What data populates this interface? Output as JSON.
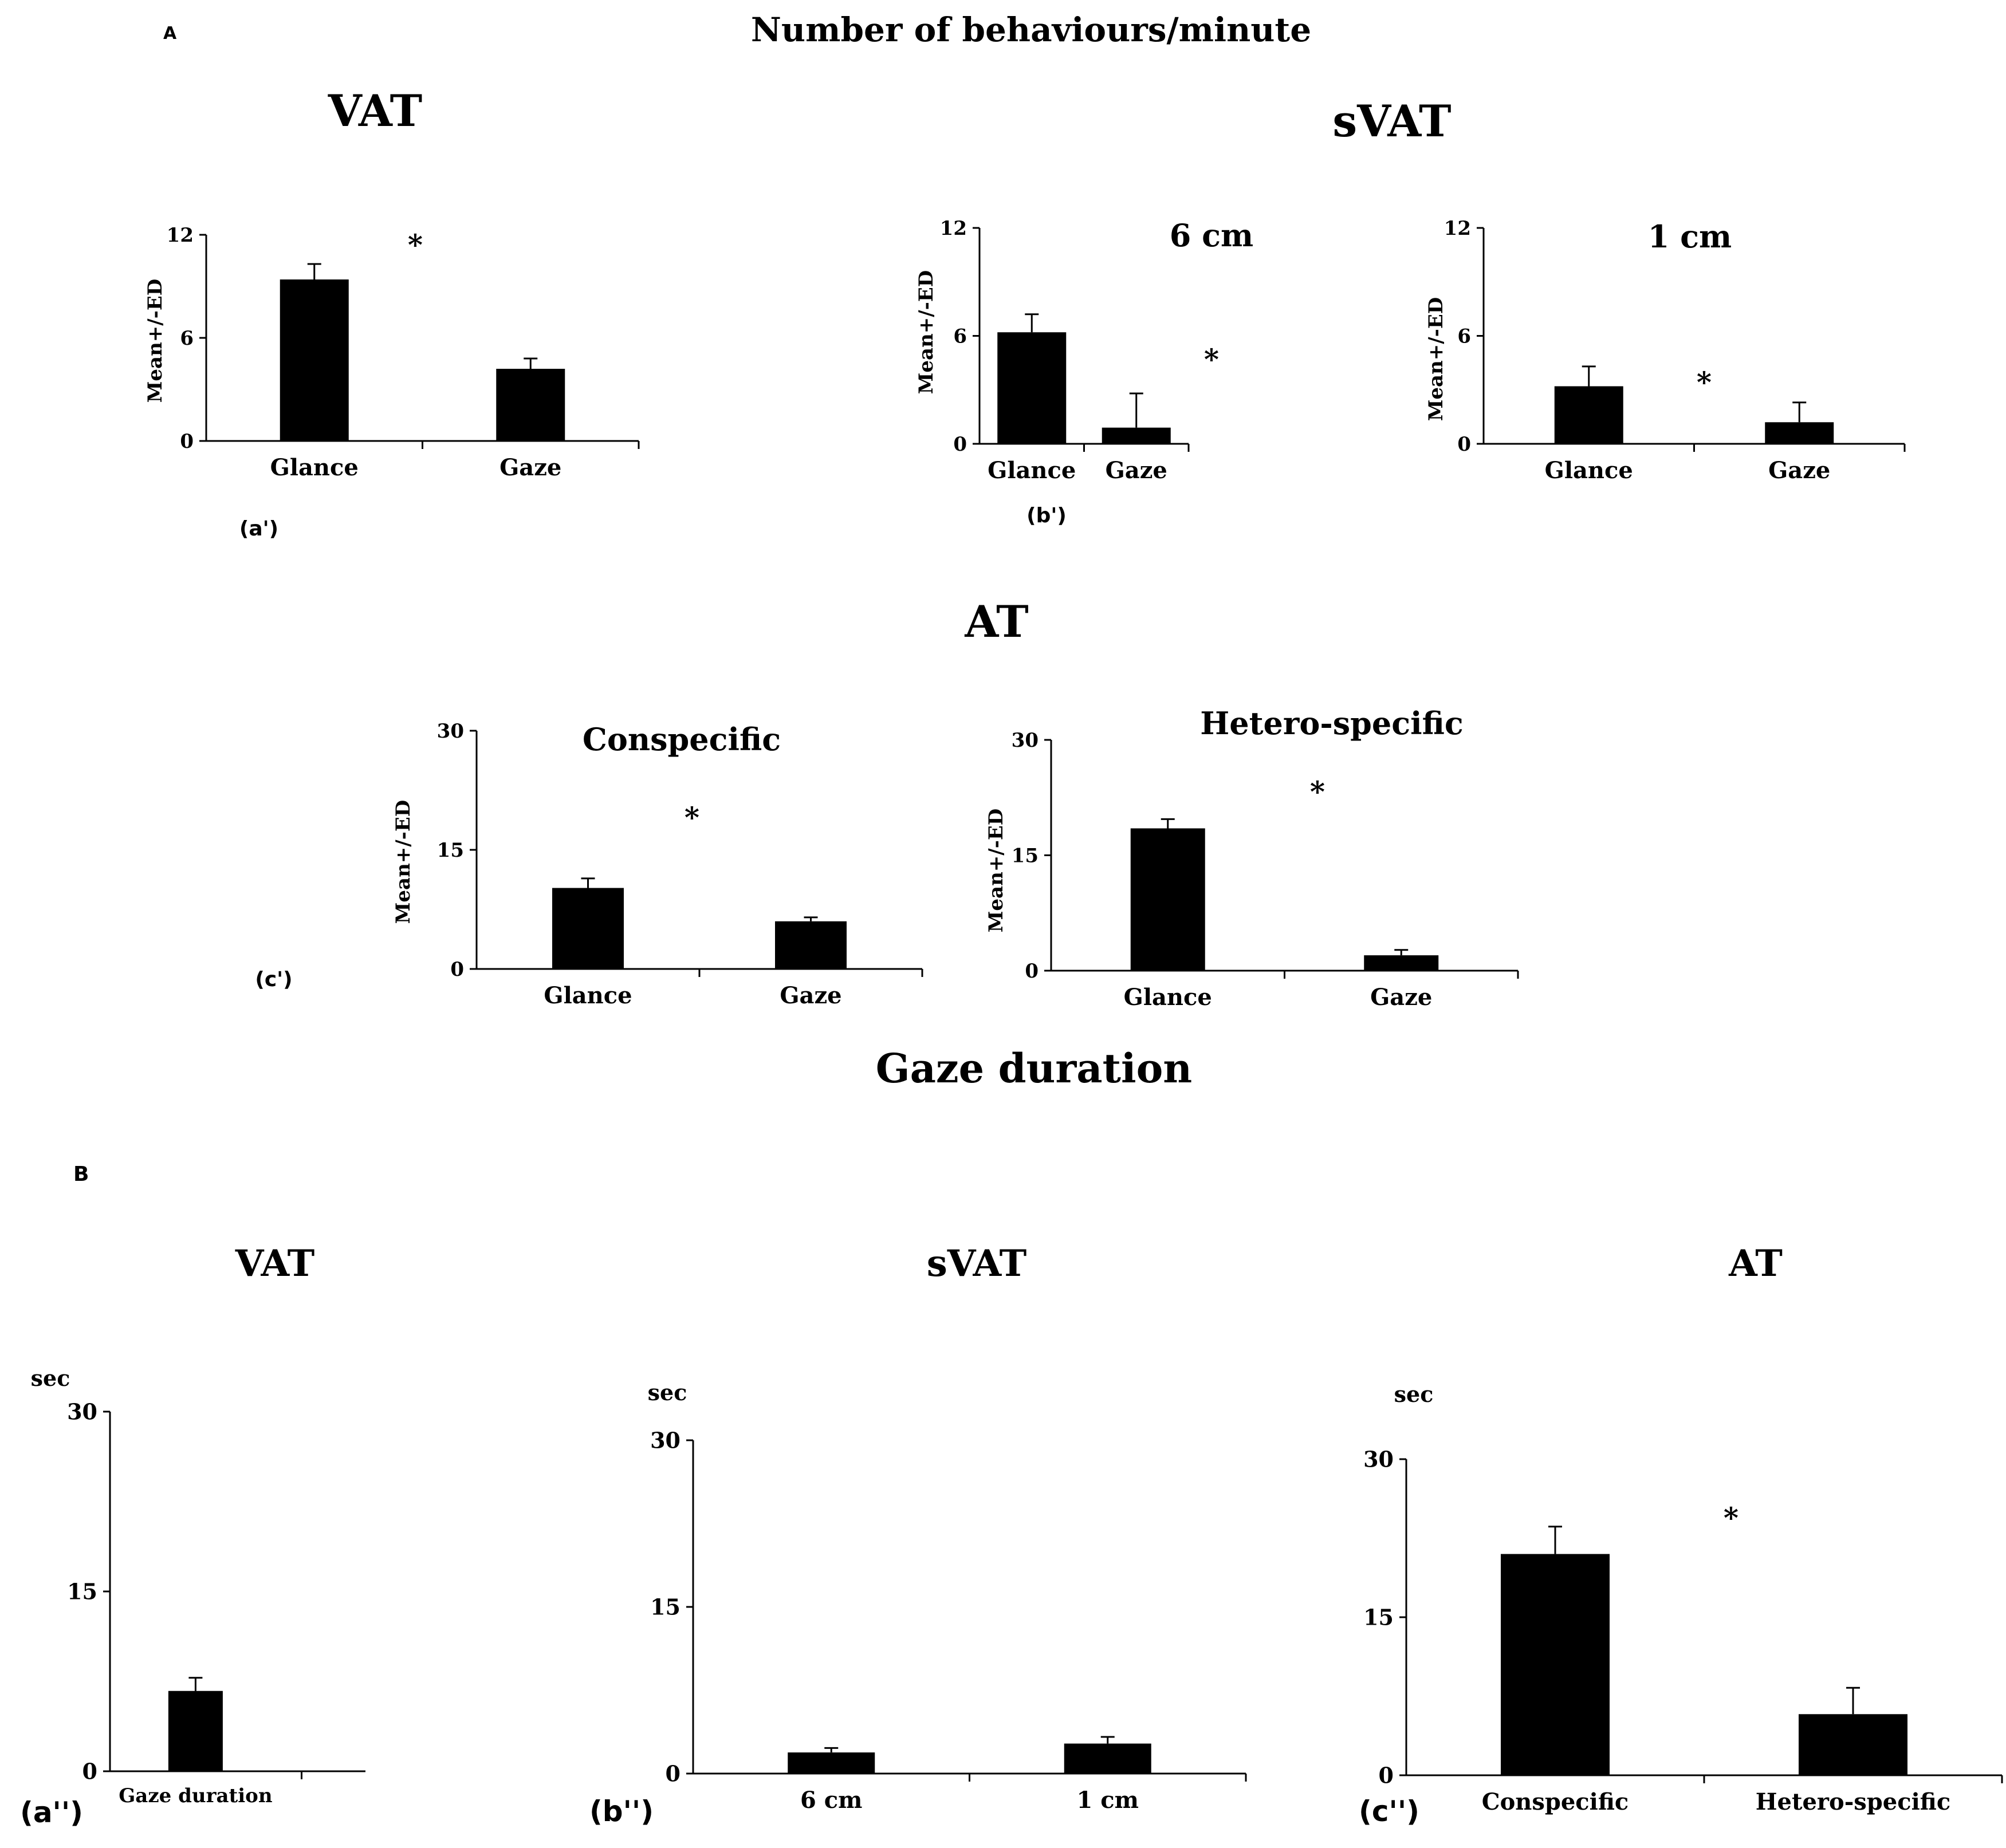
{
  "colors": {
    "bar": "#000000",
    "axis": "#000000",
    "background": "#ffffff"
  },
  "section_a": {
    "letter": "A",
    "title": "Number of behaviours/minute",
    "vat_title": "VAT",
    "svat_title": "sVAT",
    "at_title": "AT"
  },
  "section_b": {
    "letter": "B",
    "title": "Gaze duration",
    "vat_title": "VAT",
    "svat_title": "sVAT",
    "at_title": "AT"
  },
  "chart_data": [
    {
      "id": "a_prime",
      "panel_label": "(a')",
      "type": "bar",
      "title": "",
      "ylabel": "Mean+/-ED",
      "ylim": [
        0,
        12
      ],
      "yticks": [
        "0",
        "6",
        "12"
      ],
      "categories": [
        "Glance",
        "Gaze"
      ],
      "values": [
        9.4,
        4.2
      ],
      "errors": [
        0.9,
        0.6
      ],
      "significance": "*"
    },
    {
      "id": "b_prime_6cm",
      "panel_label": "(b')",
      "type": "bar",
      "title": "6 cm",
      "ylabel": "Mean+/-ED",
      "ylim": [
        0,
        12
      ],
      "yticks": [
        "0",
        "6",
        "12"
      ],
      "categories": [
        "Glance",
        "Gaze"
      ],
      "values": [
        6.2,
        0.9
      ],
      "errors": [
        1.0,
        1.9
      ],
      "significance": "*"
    },
    {
      "id": "b_prime_1cm",
      "panel_label": "",
      "type": "bar",
      "title": "1 cm",
      "ylabel": "Mean+/-ED",
      "ylim": [
        0,
        12
      ],
      "yticks": [
        "0",
        "6",
        "12"
      ],
      "categories": [
        "Glance",
        "Gaze"
      ],
      "values": [
        3.2,
        1.2
      ],
      "errors": [
        1.1,
        1.1
      ],
      "significance": "*"
    },
    {
      "id": "c_prime_con",
      "panel_label": "(c')",
      "type": "bar",
      "title": "Conspecific",
      "ylabel": "Mean+/-ED",
      "ylim": [
        0,
        30
      ],
      "yticks": [
        "0",
        "15",
        "30"
      ],
      "categories": [
        "Glance",
        "Gaze"
      ],
      "values": [
        10.2,
        6.0
      ],
      "errors": [
        1.2,
        0.5
      ],
      "significance": "*"
    },
    {
      "id": "c_prime_het",
      "panel_label": "",
      "type": "bar",
      "title": "Hetero-specific",
      "ylabel": "Mean+/-ED",
      "ylim": [
        0,
        30
      ],
      "yticks": [
        "0",
        "15",
        "30"
      ],
      "categories": [
        "Glance",
        "Gaze"
      ],
      "values": [
        18.5,
        2.0
      ],
      "errors": [
        1.2,
        0.7
      ],
      "significance": "*"
    },
    {
      "id": "a_double",
      "panel_label": "(a'')",
      "type": "bar",
      "title": "",
      "ylabel": "sec",
      "ylim": [
        0,
        30
      ],
      "yticks": [
        "0",
        "15",
        "30"
      ],
      "categories": [
        "Gaze duration"
      ],
      "values": [
        6.7
      ],
      "errors": [
        1.1
      ],
      "significance": ""
    },
    {
      "id": "b_double",
      "panel_label": "(b'')",
      "type": "bar",
      "title": "",
      "ylabel": "sec",
      "ylim": [
        0,
        30
      ],
      "yticks": [
        "0",
        "15",
        "30"
      ],
      "categories": [
        "6 cm",
        "1 cm"
      ],
      "values": [
        1.9,
        2.7
      ],
      "errors": [
        0.4,
        0.6
      ],
      "significance": ""
    },
    {
      "id": "c_double",
      "panel_label": "(c'')",
      "type": "bar",
      "title": "",
      "ylabel": "sec",
      "ylim": [
        0,
        30
      ],
      "yticks": [
        "0",
        "15",
        "30"
      ],
      "categories": [
        "Conspecific",
        "Hetero-specific"
      ],
      "values": [
        21.0,
        5.8
      ],
      "errors": [
        2.6,
        2.5
      ],
      "significance": "*"
    }
  ]
}
